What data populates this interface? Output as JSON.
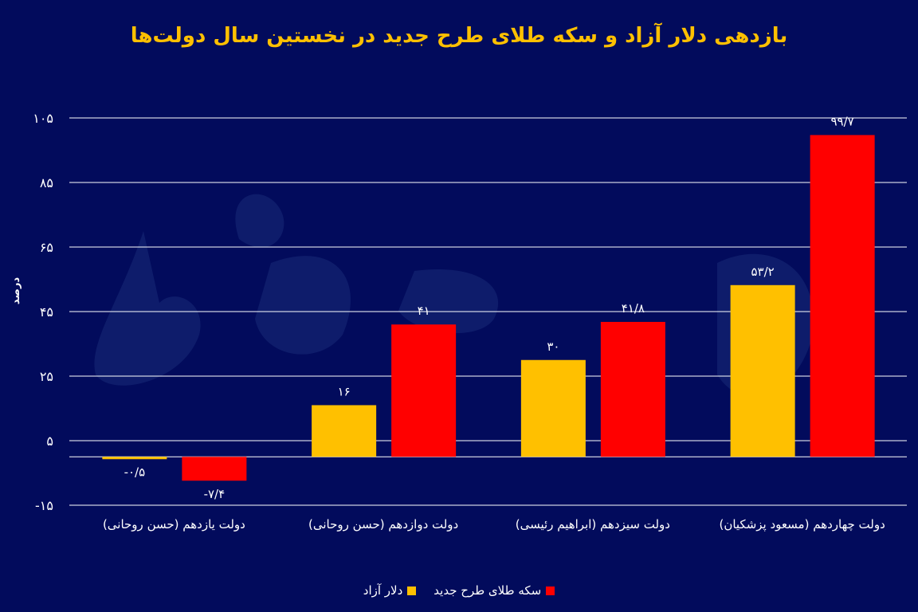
{
  "watermark": "دنیای اقتصاد",
  "chart_data": {
    "type": "bar",
    "title": "بازدهی دلار آزاد و سکه طلای طرح جدید در نخستین سال دولت‌ها",
    "xlabel": "",
    "ylabel": "درصد",
    "ylim": [
      -15,
      105
    ],
    "yticks": [
      -15,
      5,
      25,
      45,
      65,
      85,
      105
    ],
    "ytick_labels": [
      "-۱۵",
      "۵",
      "۲۵",
      "۴۵",
      "۶۵",
      "۸۵",
      "۱۰۵"
    ],
    "grid": true,
    "legend_position": "bottom",
    "categories": [
      "دولت یازدهم (حسن روحانی)",
      "دولت دوازدهم (حسن روحانی)",
      "دولت سیزدهم (ابراهیم رئیسی)",
      "دولت چهاردهم (مسعود پزشکیان)"
    ],
    "series": [
      {
        "name": "دلار آزاد",
        "color": "#ffc000",
        "values": [
          -0.5,
          16,
          30,
          53.2
        ],
        "labels": [
          "-۰/۵",
          "۱۶",
          "۳۰",
          "۵۳/۲"
        ]
      },
      {
        "name": "سکه طلای طرح جدید",
        "color": "#ff0000",
        "values": [
          -7.4,
          41,
          41.8,
          99.7
        ],
        "labels": [
          "-۷/۴",
          "۴۱",
          "۴۱/۸",
          "۹۹/۷"
        ]
      }
    ]
  }
}
